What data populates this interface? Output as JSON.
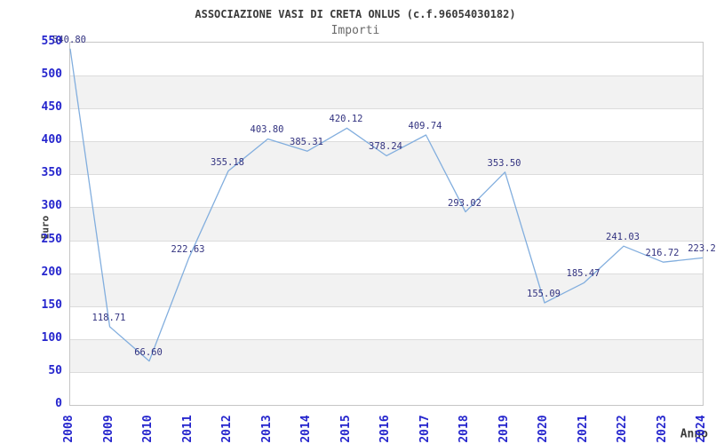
{
  "title": "ASSOCIAZIONE VASI DI CRETA ONLUS (c.f.96054030182)",
  "subtitle": "Importi",
  "chart_data": {
    "type": "line",
    "x": [
      "2008",
      "2009",
      "2010",
      "2011",
      "2012",
      "2013",
      "2014",
      "2015",
      "2016",
      "2017",
      "2018",
      "2019",
      "2020",
      "2021",
      "2022",
      "2023",
      "2024"
    ],
    "values": [
      540.8,
      118.71,
      66.6,
      222.63,
      355.18,
      403.8,
      385.31,
      420.12,
      378.24,
      409.74,
      293.02,
      353.5,
      155.09,
      185.47,
      241.03,
      216.72,
      223.2
    ],
    "point_labels": [
      "540.80",
      "118.71",
      "66.60",
      "222.63",
      "355.18",
      "403.80",
      "385.31",
      "420.12",
      "378.24",
      "409.74",
      "293.02",
      "353.50",
      "155.09",
      "185.47",
      "241.03",
      "216.72",
      "223.2"
    ],
    "title": "ASSOCIAZIONE VASI DI CRETA ONLUS (c.f.96054030182)",
    "subtitle": "Importi",
    "xlabel": "Anno",
    "ylabel": "Euro",
    "ylim": [
      0,
      550
    ],
    "ytick_step": 50,
    "y_ticks": [
      "0",
      "50",
      "100",
      "150",
      "200",
      "250",
      "300",
      "350",
      "400",
      "450",
      "500",
      "550"
    ],
    "grid": "horizontal-only",
    "bands": "alternating",
    "legend": "none"
  },
  "colors": {
    "line": "#82aede",
    "value_label": "#333380",
    "tick_label": "#2525cd",
    "title": "#3a3a3a",
    "subtitle": "#6a6a6a",
    "axis_label": "#3a3a3a",
    "band": "#f2f2f2",
    "gridline": "#dcdcdc",
    "border": "#c6c6c6",
    "background": "#ffffff"
  }
}
